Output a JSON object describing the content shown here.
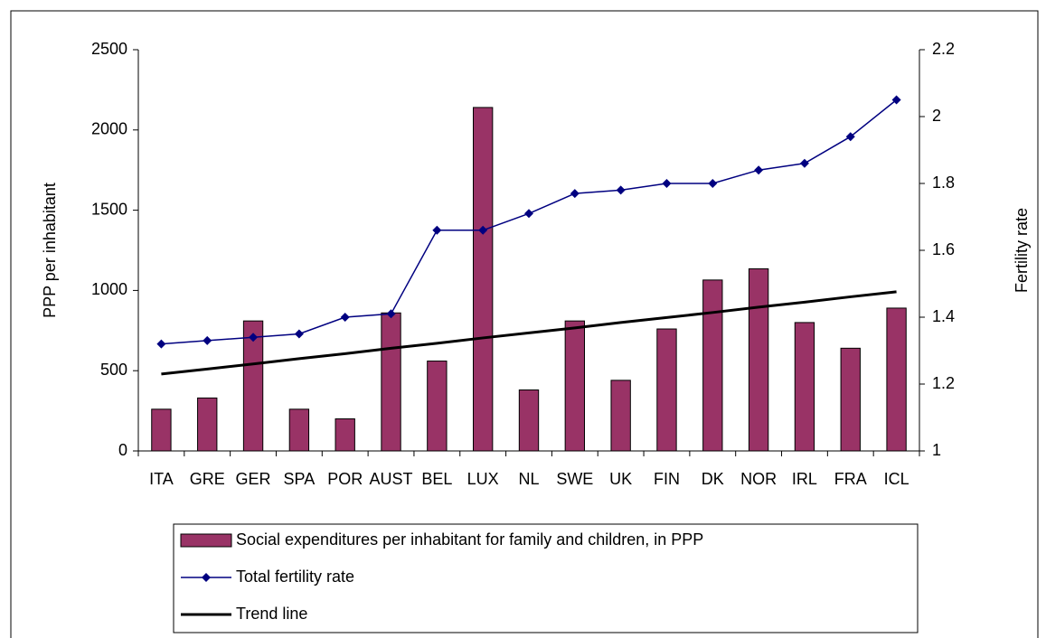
{
  "chart_data": {
    "type": "bar_line",
    "categories": [
      "ITA",
      "GRE",
      "GER",
      "SPA",
      "POR",
      "AUST",
      "BEL",
      "LUX",
      "NL",
      "SWE",
      "UK",
      "FIN",
      "DK",
      "NOR",
      "IRL",
      "FRA",
      "ICL"
    ],
    "series": [
      {
        "name": "Social expenditures per inhabitant for family and children, in PPP",
        "type": "bar",
        "color": "#993366",
        "axis": "y",
        "values": [
          260,
          330,
          810,
          260,
          200,
          860,
          560,
          2140,
          380,
          810,
          440,
          760,
          1065,
          1135,
          800,
          640,
          890
        ]
      },
      {
        "name": "Total fertility rate",
        "type": "line",
        "color": "#000080",
        "axis": "y2",
        "marker": "diamond",
        "values": [
          1.32,
          1.33,
          1.34,
          1.35,
          1.4,
          1.41,
          1.66,
          1.66,
          1.71,
          1.77,
          1.78,
          1.8,
          1.8,
          1.84,
          1.86,
          1.94,
          2.05
        ]
      },
      {
        "name": "Trend line",
        "type": "line",
        "color": "#000000",
        "axis": "y2",
        "values": [
          1.23,
          1.245,
          1.26,
          1.276,
          1.291,
          1.307,
          1.322,
          1.338,
          1.353,
          1.368,
          1.384,
          1.399,
          1.414,
          1.43,
          1.445,
          1.461,
          1.476
        ]
      }
    ],
    "ylabel": "PPP per inhabitant",
    "y2label": "Fertility rate",
    "ylim": [
      0,
      2500
    ],
    "yticks": [
      0,
      500,
      1000,
      1500,
      2000,
      2500
    ],
    "y2lim": [
      1,
      2.2
    ],
    "y2ticks": [
      1,
      1.2,
      1.4,
      1.6,
      1.8,
      2,
      2.2
    ],
    "grid": false,
    "legend": "bottom"
  }
}
